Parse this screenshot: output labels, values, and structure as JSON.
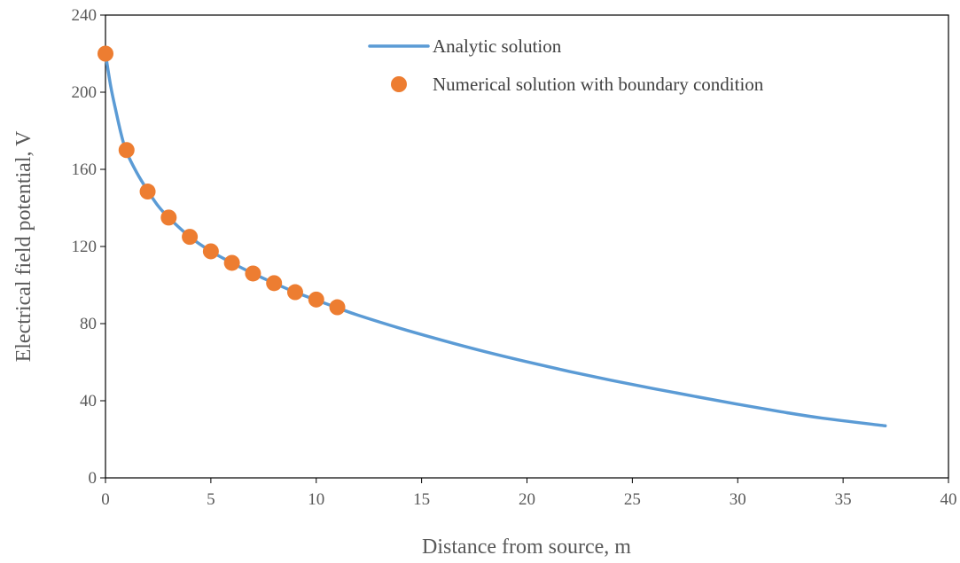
{
  "chart_data": {
    "type": "scatter",
    "title": "",
    "xlabel": "Distance from source, m",
    "ylabel": "Electrical field potential, V",
    "xlim": [
      0,
      40
    ],
    "ylim": [
      0,
      240
    ],
    "xticks": [
      0,
      5,
      10,
      15,
      20,
      25,
      30,
      35,
      40
    ],
    "yticks": [
      0,
      40,
      80,
      120,
      160,
      200,
      240
    ],
    "xtick_labels": [
      "0",
      "5",
      "10",
      "15",
      "20",
      "25",
      "30",
      "35",
      "40"
    ],
    "ytick_labels": [
      "0",
      "40",
      "80",
      "120",
      "160",
      "200",
      "240"
    ],
    "grid": false,
    "legend_position": "top-right",
    "series": [
      {
        "name": "Analytic solution",
        "kind": "line",
        "color": "#5B9BD5",
        "x": [
          0,
          0.25,
          0.5,
          0.75,
          1,
          1.5,
          2,
          2.5,
          3,
          4,
          5,
          6,
          7,
          8,
          9,
          10,
          11,
          12,
          14,
          16,
          18,
          20,
          22,
          24,
          26,
          28,
          30,
          32,
          34,
          37
        ],
        "y": [
          220,
          203,
          190,
          178,
          169,
          158,
          149,
          141,
          135,
          125,
          117.5,
          111.5,
          106,
          101,
          96.3,
          92.2,
          88.2,
          84.3,
          77.5,
          71.3,
          65.5,
          60.2,
          55.2,
          50.6,
          46.3,
          42.2,
          38.2,
          34.4,
          31,
          27
        ]
      },
      {
        "name": "Numerical solution with boundary condition",
        "kind": "scatter",
        "color": "#ED7D31",
        "x": [
          0,
          1,
          2,
          3,
          4,
          5,
          6,
          7,
          8,
          9,
          10,
          11
        ],
        "y": [
          220,
          170,
          148.5,
          135,
          125,
          117.5,
          111.5,
          106,
          101,
          96.3,
          92.5,
          88.5
        ]
      }
    ]
  }
}
